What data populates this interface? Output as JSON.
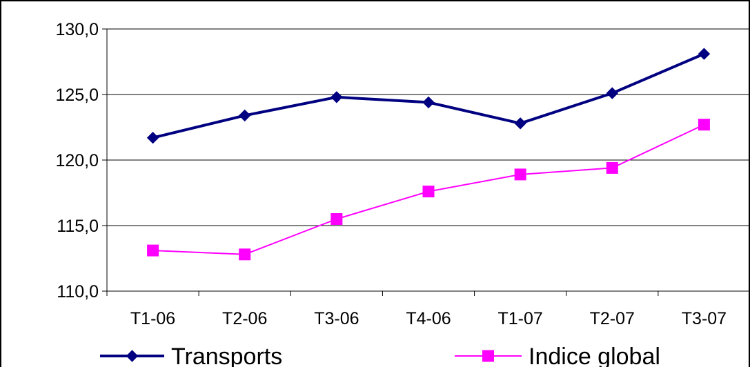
{
  "chart_data": {
    "type": "line",
    "title": "",
    "xlabel": "",
    "ylabel": "",
    "categories": [
      "T1-06",
      "T2-06",
      "T3-06",
      "T4-06",
      "T1-07",
      "T2-07",
      "T3-07"
    ],
    "ylim": [
      110,
      130
    ],
    "yticks": [
      110,
      115,
      120,
      125,
      130
    ],
    "ytick_labels": [
      "110,0",
      "115,0",
      "120,0",
      "125,0",
      "130,0"
    ],
    "grid": "horizontal",
    "legend_position": "bottom",
    "series": [
      {
        "name": "Transports",
        "values": [
          121.7,
          123.4,
          124.8,
          124.4,
          122.8,
          125.1,
          128.1
        ],
        "color": "#000080",
        "marker": "diamond"
      },
      {
        "name": "Indice global",
        "values": [
          113.1,
          112.8,
          115.5,
          117.6,
          118.9,
          119.4,
          122.7
        ],
        "color": "#ff00ff",
        "marker": "square"
      }
    ]
  }
}
